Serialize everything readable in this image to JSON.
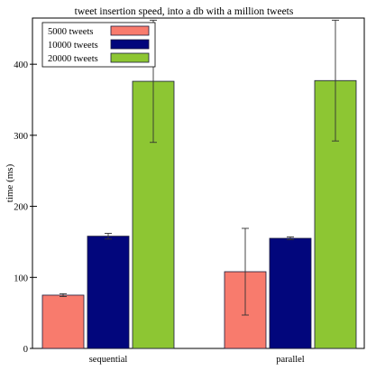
{
  "chart_data": {
    "type": "bar",
    "title": "tweet insertion speed, into a db with a million tweets",
    "xlabel": "",
    "ylabel": "time (ms)",
    "ylim": [
      0,
      465
    ],
    "yticks": [
      0,
      100,
      200,
      300,
      400
    ],
    "categories": [
      "sequential",
      "parallel"
    ],
    "series": [
      {
        "name": "5000 tweets",
        "color": "#f87b6d",
        "values": [
          75,
          108
        ],
        "error": [
          2,
          61
        ]
      },
      {
        "name": "10000 tweets",
        "color": "#02067c",
        "values": [
          158,
          155
        ],
        "error": [
          4,
          2
        ]
      },
      {
        "name": "20000 tweets",
        "color": "#8dc633",
        "values": [
          376,
          377
        ],
        "error": [
          86,
          85
        ]
      }
    ],
    "legend": "top-left",
    "grid": false
  }
}
